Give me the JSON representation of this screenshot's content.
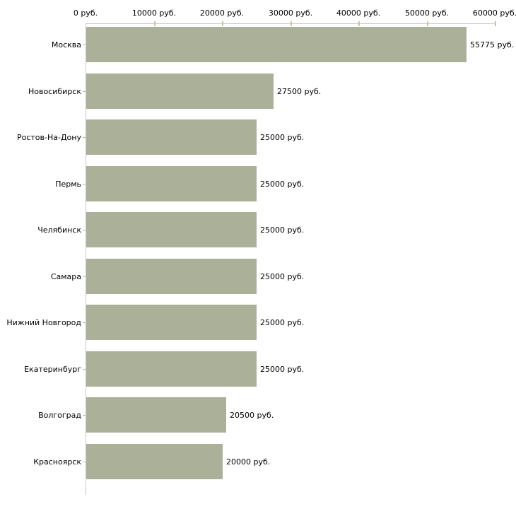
{
  "chart_data": {
    "type": "bar",
    "orientation": "horizontal",
    "title": "",
    "categories": [
      "Москва",
      "Новосибирск",
      "Ростов-На-Дону",
      "Пермь",
      "Челябинск",
      "Самара",
      "Нижний Новгород",
      "Екатеринбург",
      "Волгоград",
      "Красноярск"
    ],
    "values": [
      55775,
      27500,
      25000,
      25000,
      25000,
      25000,
      25000,
      25000,
      20500,
      20000
    ],
    "value_labels": [
      "55775 руб.",
      "27500 руб.",
      "25000 руб.",
      "25000 руб.",
      "25000 руб.",
      "25000 руб.",
      "25000 руб.",
      "25000 руб.",
      "20500 руб.",
      "20000 руб."
    ],
    "unit": "руб.",
    "x_axis": {
      "position": "top",
      "range": [
        0,
        60000
      ],
      "tick_values": [
        0,
        10000,
        20000,
        30000,
        40000,
        50000,
        60000
      ],
      "tick_labels": [
        "0 руб.",
        "10000 руб.",
        "20000 руб.",
        "30000 руб.",
        "40000 руб.",
        "50000 руб.",
        "60000 руб."
      ]
    },
    "grid": false,
    "legend": false,
    "colors": {
      "bar_fill": "#abb199",
      "axis_line": "#c9c9c9",
      "axis_tick": "#c5c59b",
      "category_tick": "#b3b3a6",
      "text": "#000000",
      "background": "#ffffff"
    }
  }
}
